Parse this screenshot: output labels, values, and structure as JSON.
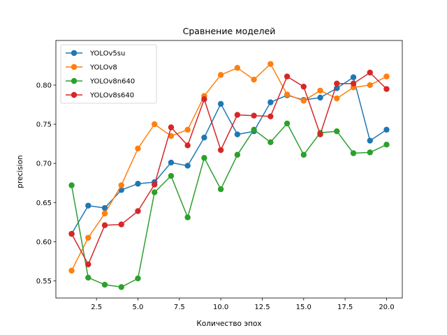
{
  "chart_data": {
    "type": "line",
    "title": "Сравнение моделей",
    "xlabel": "Количество эпох",
    "ylabel": "precision",
    "xlim": [
      0.05,
      20.95
    ],
    "ylim": [
      0.528,
      0.857
    ],
    "xticks": [
      2.5,
      5.0,
      7.5,
      10.0,
      12.5,
      15.0,
      17.5,
      20.0
    ],
    "xtick_labels": [
      "2.5",
      "5.0",
      "7.5",
      "10.0",
      "12.5",
      "15.0",
      "17.5",
      "20.0"
    ],
    "yticks": [
      0.55,
      0.6,
      0.65,
      0.7,
      0.75,
      0.8
    ],
    "ytick_labels": [
      "0.55",
      "0.60",
      "0.65",
      "0.70",
      "0.75",
      "0.80"
    ],
    "grid": false,
    "legend_position": "top-left",
    "x": [
      1,
      2,
      3,
      4,
      5,
      6,
      7,
      8,
      9,
      10,
      11,
      12,
      13,
      14,
      15,
      16,
      17,
      18,
      19,
      20
    ],
    "series": [
      {
        "name": "YOLOv5su",
        "color": "#1f77b4",
        "values": [
          0.61,
          0.646,
          0.643,
          0.666,
          0.674,
          0.676,
          0.701,
          0.697,
          0.733,
          0.776,
          0.737,
          0.741,
          0.778,
          0.787,
          0.781,
          0.784,
          0.796,
          0.81,
          0.729,
          0.743
        ]
      },
      {
        "name": "YOLOv8",
        "color": "#ff7f0e",
        "values": [
          0.563,
          0.605,
          0.636,
          0.672,
          0.719,
          0.75,
          0.735,
          0.743,
          0.786,
          0.813,
          0.822,
          0.807,
          0.827,
          0.788,
          0.78,
          0.793,
          0.783,
          0.797,
          0.8,
          0.811
        ]
      },
      {
        "name": "YOLOv8n640",
        "color": "#2ca02c",
        "values": [
          0.672,
          0.554,
          0.545,
          0.542,
          0.553,
          0.663,
          0.684,
          0.631,
          0.707,
          0.667,
          0.711,
          0.743,
          0.727,
          0.751,
          0.711,
          0.739,
          0.741,
          0.713,
          0.714,
          0.724
        ]
      },
      {
        "name": "YOLOv8s640",
        "color": "#d62728",
        "values": [
          0.61,
          0.571,
          0.621,
          0.622,
          0.639,
          0.673,
          0.746,
          0.723,
          0.782,
          0.717,
          0.762,
          0.761,
          0.76,
          0.811,
          0.798,
          0.737,
          0.802,
          0.802,
          0.816,
          0.795
        ]
      }
    ]
  }
}
